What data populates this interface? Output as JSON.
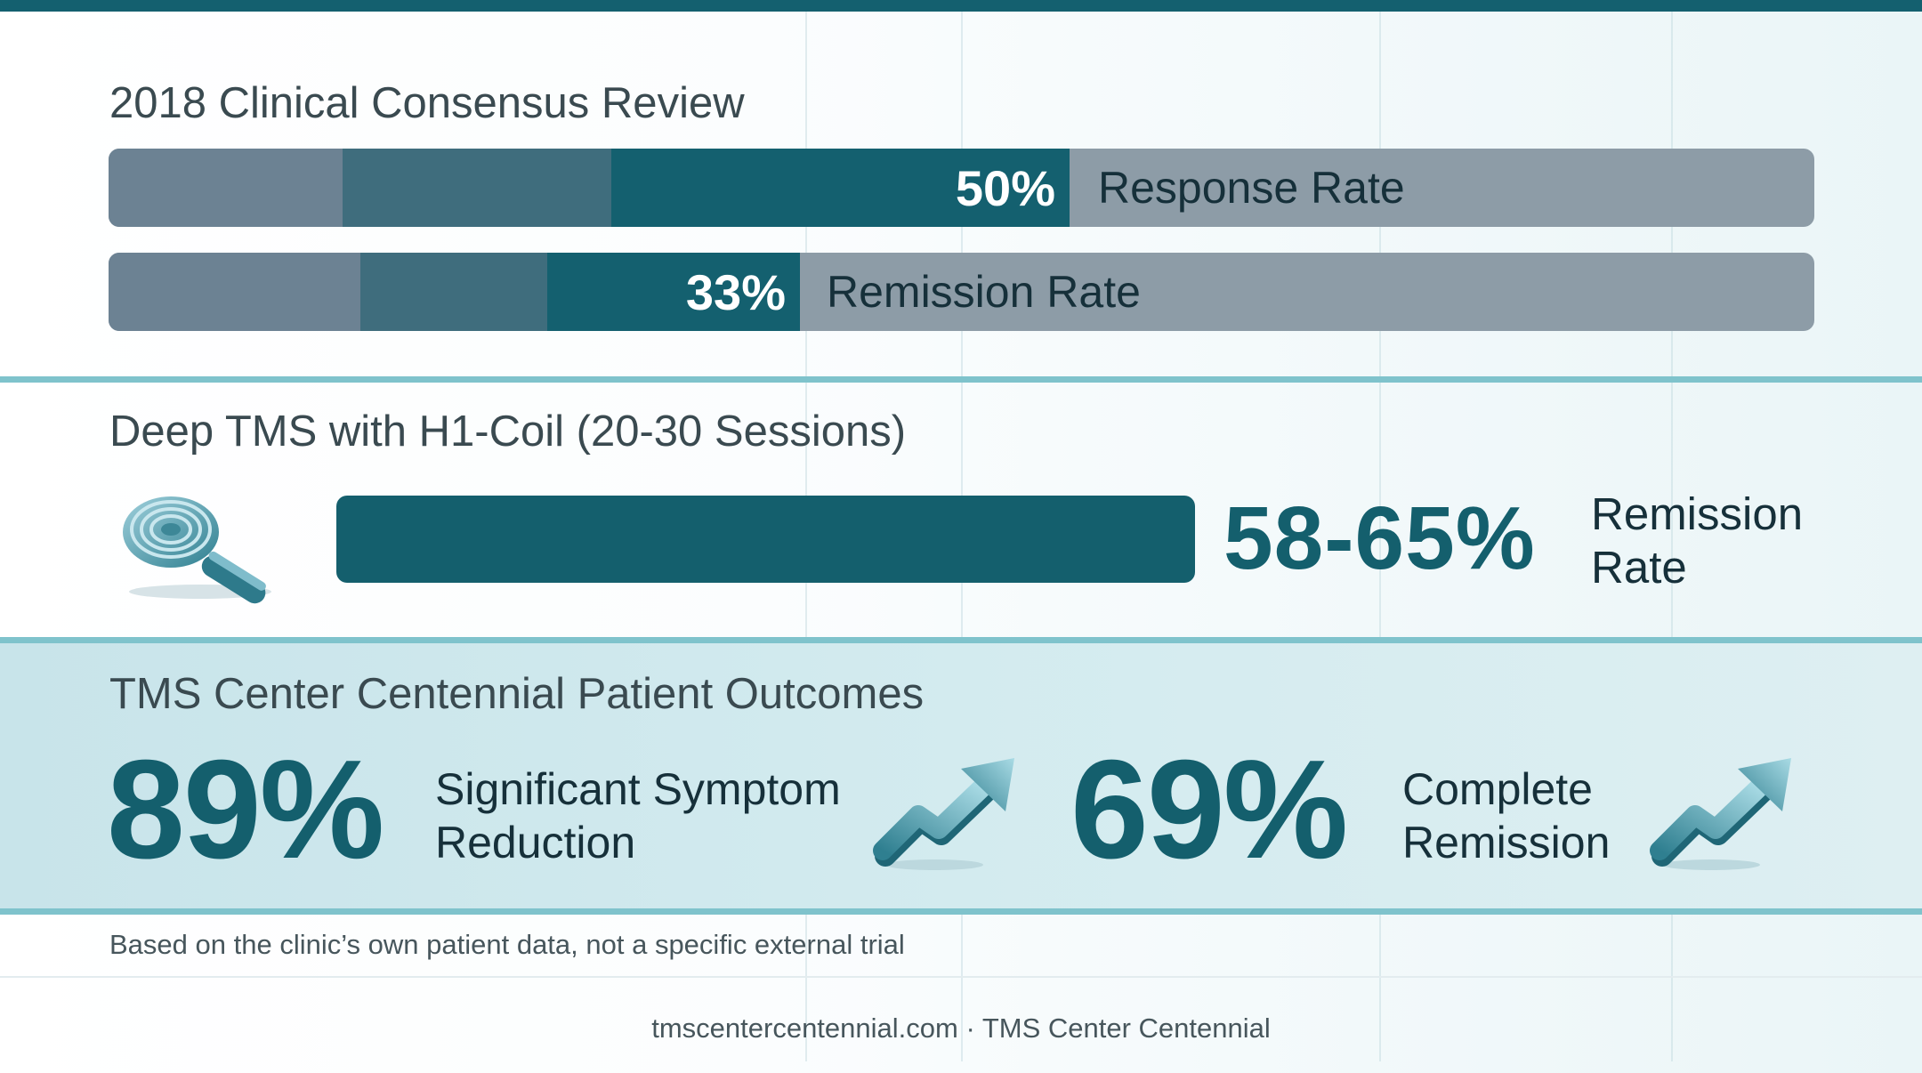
{
  "colors": {
    "accent": "#145f6d",
    "track": "#8d9ca7",
    "separator": "#7fc3cc",
    "panel": "#d3ebef"
  },
  "consensus": {
    "title": "2018 Clinical Consensus Review",
    "bars": [
      {
        "value_text": "50%",
        "value": 50,
        "label": "Response Rate"
      },
      {
        "value_text": "33%",
        "value": 33,
        "label": "Remission Rate"
      }
    ]
  },
  "deep_tms": {
    "title": "Deep TMS with H1-Coil (20-30 Sessions)",
    "icon": "h1-coil-icon",
    "value_text": "58-65%",
    "label_line1": "Remission",
    "label_line2": "Rate"
  },
  "outcomes": {
    "title": "TMS Center Centennial Patient Outcomes",
    "items": [
      {
        "value_text": "89%",
        "label_line1": "Significant Symptom",
        "label_line2": "Reduction",
        "icon": "trend-up-arrow-icon"
      },
      {
        "value_text": "69%",
        "label_line1": "Complete",
        "label_line2": "Remission",
        "icon": "trend-up-arrow-icon"
      }
    ]
  },
  "footnote": "Based on the clinic’s own patient data, not a specific external trial",
  "footer": "tmscentercentennial.com · TMS Center Centennial"
}
